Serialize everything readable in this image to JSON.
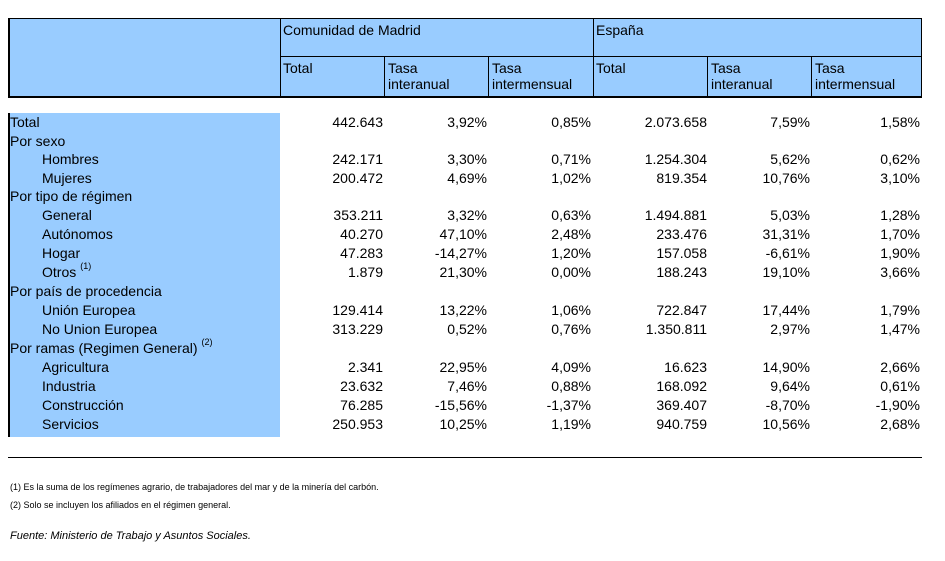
{
  "header": {
    "region1": "Comunidad de Madrid",
    "region2": "España",
    "cols": [
      [
        "Total"
      ],
      [
        "Tasa",
        "interanual"
      ],
      [
        "Tasa",
        "intermensual"
      ],
      [
        "Total"
      ],
      [
        "Tasa",
        "interanual"
      ],
      [
        "Tasa",
        "intermensual"
      ]
    ]
  },
  "rows": [
    {
      "label": "Total",
      "values": [
        "442.643",
        "3,92%",
        "0,85%",
        "2.073.658",
        "7,59%",
        "1,58%"
      ]
    },
    {
      "label": "Por sexo",
      "values": []
    },
    {
      "label": "Hombres",
      "values": [
        "242.171",
        "3,30%",
        "0,71%",
        "1.254.304",
        "5,62%",
        "0,62%"
      ]
    },
    {
      "label": "Mujeres",
      "values": [
        "200.472",
        "4,69%",
        "1,02%",
        "819.354",
        "10,76%",
        "3,10%"
      ]
    },
    {
      "label": "Por tipo de régimen",
      "values": []
    },
    {
      "label": "General",
      "values": [
        "353.211",
        "3,32%",
        "0,63%",
        "1.494.881",
        "5,03%",
        "1,28%"
      ]
    },
    {
      "label": "Autónomos",
      "values": [
        "40.270",
        "47,10%",
        "2,48%",
        "233.476",
        "31,31%",
        "1,70%"
      ]
    },
    {
      "label": "Hogar",
      "values": [
        "47.283",
        "-14,27%",
        "1,20%",
        "157.058",
        "-6,61%",
        "1,90%"
      ]
    },
    {
      "label": "Otros",
      "sup": "(1)",
      "values": [
        "1.879",
        "21,30%",
        "0,00%",
        "188.243",
        "19,10%",
        "3,66%"
      ]
    },
    {
      "label": "Por país de procedencia",
      "values": []
    },
    {
      "label": "Unión Europea",
      "values": [
        "129.414",
        "13,22%",
        "1,06%",
        "722.847",
        "17,44%",
        "1,79%"
      ]
    },
    {
      "label": "No Union Europea",
      "values": [
        "313.229",
        "0,52%",
        "0,76%",
        "1.350.811",
        "2,97%",
        "1,47%"
      ]
    },
    {
      "label": "Por ramas (Regimen General)",
      "sup": "(2)",
      "values": []
    },
    {
      "label": "Agricultura",
      "values": [
        "2.341",
        "22,95%",
        "4,09%",
        "16.623",
        "14,90%",
        "2,66%"
      ]
    },
    {
      "label": "Industria",
      "values": [
        "23.632",
        "7,46%",
        "0,88%",
        "168.092",
        "9,64%",
        "0,61%"
      ]
    },
    {
      "label": "Construcción",
      "values": [
        "76.285",
        "-15,56%",
        "-1,37%",
        "369.407",
        "-8,70%",
        "-1,90%"
      ]
    },
    {
      "label": "Servicios",
      "values": [
        "250.953",
        "10,25%",
        "1,19%",
        "940.759",
        "10,56%",
        "2,68%"
      ]
    }
  ],
  "notes": [
    "(1) Es la suma de los regímenes  agrario, de trabajadores del mar y de la minería del carbón.",
    "(2) Solo se incluyen los afiliados en el régimen general."
  ],
  "source": "Fuente: Ministerio de Trabajo y Asuntos Sociales."
}
